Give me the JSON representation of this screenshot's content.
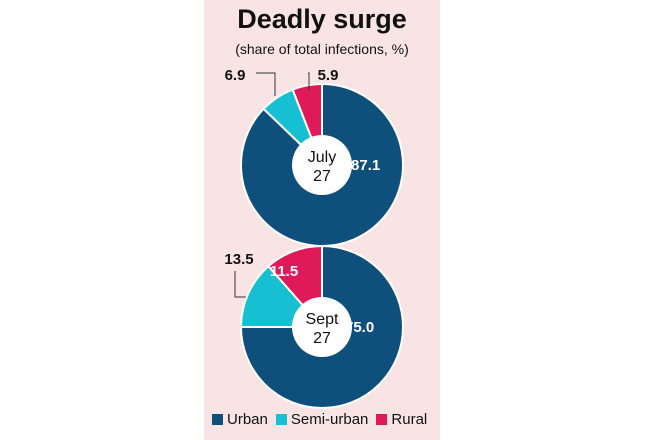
{
  "chart_data": {
    "type": "pie",
    "title": "Deadly surge",
    "subtitle": "(share of total infections, %)",
    "categories": [
      "Urban",
      "Semi-urban",
      "Rural"
    ],
    "colors": {
      "Urban": "#0e4f7c",
      "Semi-urban": "#17bfd3",
      "Rural": "#e0195a"
    },
    "legend_position": "bottom",
    "charts": [
      {
        "label_line1": "July",
        "label_line2": "27",
        "values": [
          87.1,
          6.9,
          5.9
        ],
        "value_labels": [
          "87.1",
          "6.9",
          "5.9"
        ]
      },
      {
        "label_line1": "Sept",
        "label_line2": "27",
        "values": [
          75.0,
          13.5,
          11.5
        ],
        "value_labels": [
          "75.0",
          "13.5",
          "11.5"
        ]
      }
    ]
  },
  "legend": {
    "items": [
      "Urban",
      "Semi-urban",
      "Rural"
    ]
  }
}
